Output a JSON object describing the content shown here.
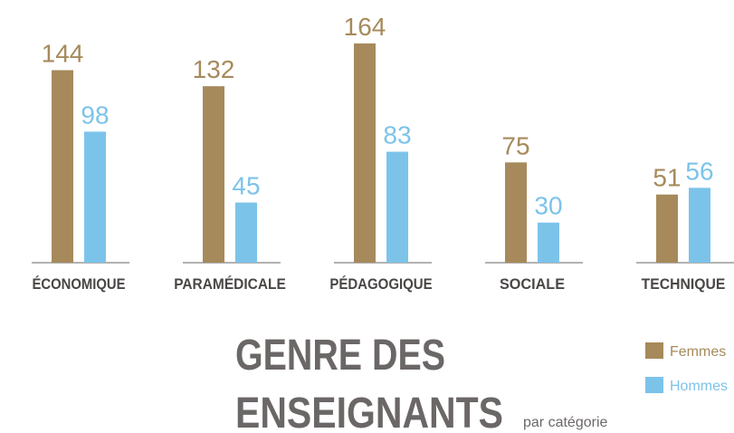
{
  "chart_data": {
    "type": "bar",
    "title": [
      "GENRE DES",
      "ENSEIGNANTS"
    ],
    "subtitle": "par catégorie",
    "categories": [
      "ÉCONOMIQUE",
      "PARAMÉDICALE",
      "PÉDAGOGIQUE",
      "SOCIALE",
      "TECHNIQUE"
    ],
    "series": [
      {
        "name": "Femmes",
        "color": "#a68a5c",
        "values": [
          144,
          132,
          164,
          75,
          51
        ]
      },
      {
        "name": "Hommes",
        "color": "#7cc3ea",
        "values": [
          98,
          45,
          83,
          30,
          56
        ]
      }
    ]
  }
}
